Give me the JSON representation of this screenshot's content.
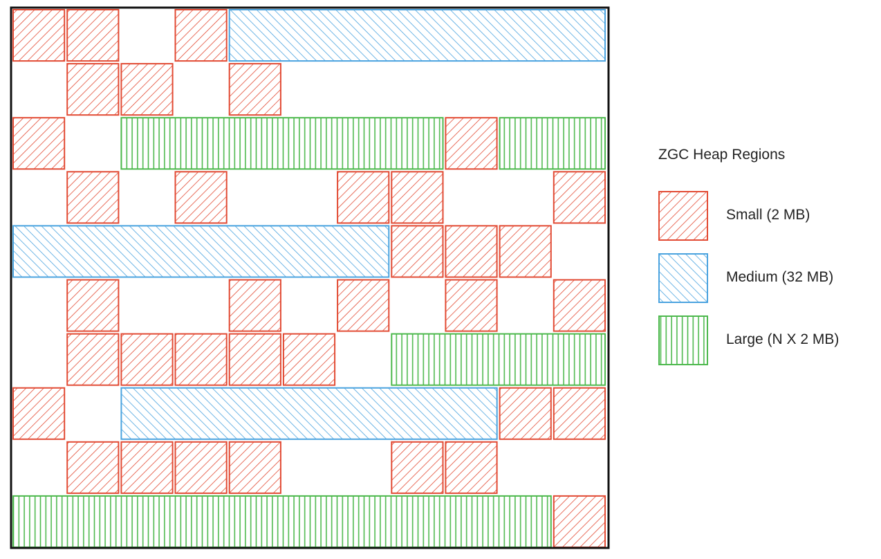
{
  "colors": {
    "small": "#e24a33",
    "medium": "#4aa3df",
    "large": "#4cb84c",
    "frame": "#111111"
  },
  "legend": {
    "title": "ZGC Heap Regions",
    "items": [
      {
        "key": "small",
        "label": "Small (2 MB)",
        "pattern": "diagonal-hatch"
      },
      {
        "key": "medium",
        "label": "Medium (32 MB)",
        "pattern": "back-diagonal-hatch"
      },
      {
        "key": "large",
        "label": "Large (N X 2 MB)",
        "pattern": "vertical-hatch"
      }
    ]
  },
  "heap_rows": [
    [
      [
        "small",
        1
      ],
      [
        "small",
        1
      ],
      [
        "gap",
        1
      ],
      [
        "small",
        1
      ],
      [
        "medium",
        7
      ]
    ],
    [
      [
        "gap",
        1
      ],
      [
        "small",
        1
      ],
      [
        "small",
        1
      ],
      [
        "gap",
        1
      ],
      [
        "small",
        1
      ],
      [
        "gap",
        6
      ]
    ],
    [
      [
        "small",
        1
      ],
      [
        "gap",
        1
      ],
      [
        "large",
        6
      ],
      [
        "small",
        1
      ],
      [
        "large",
        2
      ]
    ],
    [
      [
        "gap",
        1
      ],
      [
        "small",
        1
      ],
      [
        "gap",
        1
      ],
      [
        "small",
        1
      ],
      [
        "gap",
        2
      ],
      [
        "small",
        1
      ],
      [
        "small",
        1
      ],
      [
        "gap",
        2
      ],
      [
        "small",
        1
      ]
    ],
    [
      [
        "medium",
        7
      ],
      [
        "small",
        1
      ],
      [
        "small",
        1
      ],
      [
        "small",
        1
      ],
      [
        "gap",
        1
      ]
    ],
    [
      [
        "gap",
        1
      ],
      [
        "small",
        1
      ],
      [
        "gap",
        2
      ],
      [
        "small",
        1
      ],
      [
        "gap",
        1
      ],
      [
        "small",
        1
      ],
      [
        "gap",
        1
      ],
      [
        "small",
        1
      ],
      [
        "gap",
        1
      ],
      [
        "small",
        1
      ]
    ],
    [
      [
        "gap",
        1
      ],
      [
        "small",
        1
      ],
      [
        "small",
        1
      ],
      [
        "small",
        1
      ],
      [
        "small",
        1
      ],
      [
        "small",
        1
      ],
      [
        "gap",
        1
      ],
      [
        "large",
        4
      ]
    ],
    [
      [
        "small",
        1
      ],
      [
        "gap",
        1
      ],
      [
        "medium",
        7
      ],
      [
        "small",
        1
      ],
      [
        "small",
        1
      ]
    ],
    [
      [
        "gap",
        1
      ],
      [
        "small",
        1
      ],
      [
        "small",
        1
      ],
      [
        "small",
        1
      ],
      [
        "small",
        1
      ],
      [
        "gap",
        2
      ],
      [
        "small",
        1
      ],
      [
        "small",
        1
      ],
      [
        "gap",
        2
      ]
    ],
    [
      [
        "large",
        10
      ],
      [
        "small",
        1
      ]
    ]
  ]
}
